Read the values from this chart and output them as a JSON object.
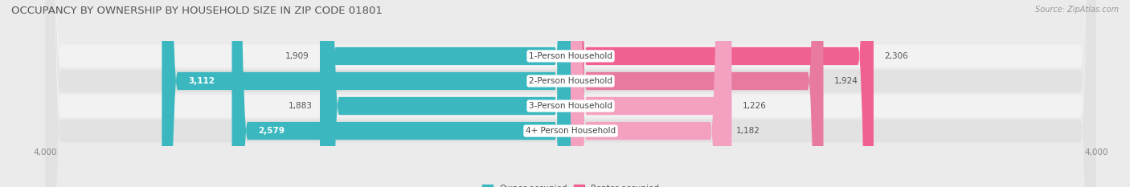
{
  "title": "OCCUPANCY BY OWNERSHIP BY HOUSEHOLD SIZE IN ZIP CODE 01801",
  "source": "Source: ZipAtlas.com",
  "categories": [
    "1-Person Household",
    "2-Person Household",
    "3-Person Household",
    "4+ Person Household"
  ],
  "owner_values": [
    1909,
    3112,
    1883,
    2579
  ],
  "renter_values": [
    2306,
    1924,
    1226,
    1182
  ],
  "max_scale": 4000,
  "owner_color": "#3BB8BF",
  "renter_colors": [
    "#F06090",
    "#E87AA0",
    "#F4A0C0",
    "#F4A0C0"
  ],
  "bg_color": "#EBEBEB",
  "row_colors": [
    "#F2F2F2",
    "#E2E2E2",
    "#F2F2F2",
    "#E2E2E2"
  ],
  "title_fontsize": 9.5,
  "label_fontsize": 7.5,
  "tick_fontsize": 7.5,
  "legend_fontsize": 7.5,
  "source_fontsize": 7
}
